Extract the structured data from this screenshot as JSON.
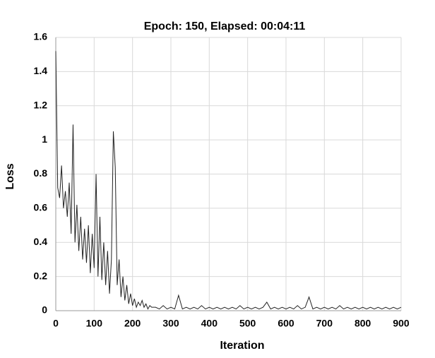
{
  "chart_data": {
    "type": "line",
    "title": "Epoch: 150, Elapsed: 00:04:11",
    "x_label": "Iteration",
    "y_label": "Loss",
    "color": "#222222",
    "grid": true,
    "xlim": [
      0,
      900
    ],
    "xticks": [
      0,
      100,
      200,
      300,
      400,
      500,
      600,
      700,
      800,
      900
    ],
    "ylim": [
      0,
      1.6
    ],
    "yticks": [
      0,
      0.2,
      0.4,
      0.6,
      0.8,
      1,
      1.2,
      1.4,
      1.6
    ],
    "x": [
      0,
      5,
      10,
      15,
      20,
      25,
      30,
      35,
      40,
      45,
      50,
      55,
      60,
      65,
      70,
      75,
      80,
      85,
      90,
      95,
      100,
      105,
      110,
      115,
      120,
      125,
      130,
      135,
      140,
      145,
      150,
      155,
      160,
      165,
      170,
      175,
      180,
      185,
      190,
      195,
      200,
      205,
      210,
      215,
      220,
      225,
      230,
      235,
      240,
      245,
      250,
      260,
      270,
      280,
      290,
      300,
      310,
      320,
      330,
      340,
      350,
      360,
      370,
      380,
      390,
      400,
      410,
      420,
      430,
      440,
      450,
      460,
      470,
      480,
      490,
      500,
      510,
      520,
      530,
      540,
      550,
      560,
      570,
      580,
      590,
      600,
      610,
      620,
      630,
      640,
      650,
      660,
      670,
      680,
      690,
      700,
      710,
      720,
      730,
      740,
      750,
      760,
      770,
      780,
      790,
      800,
      810,
      820,
      830,
      840,
      850,
      860,
      870,
      880,
      890,
      900
    ],
    "values": [
      1.52,
      0.72,
      0.66,
      0.85,
      0.6,
      0.7,
      0.55,
      0.75,
      0.45,
      1.09,
      0.4,
      0.62,
      0.35,
      0.55,
      0.3,
      0.48,
      0.28,
      0.5,
      0.22,
      0.45,
      0.25,
      0.8,
      0.2,
      0.55,
      0.18,
      0.4,
      0.15,
      0.35,
      0.1,
      0.3,
      1.05,
      0.84,
      0.15,
      0.3,
      0.08,
      0.2,
      0.06,
      0.15,
      0.04,
      0.1,
      0.03,
      0.07,
      0.02,
      0.05,
      0.03,
      0.06,
      0.02,
      0.04,
      0.01,
      0.03,
      0.02,
      0.02,
      0.01,
      0.03,
      0.01,
      0.02,
      0.01,
      0.09,
      0.01,
      0.02,
      0.01,
      0.02,
      0.01,
      0.03,
      0.01,
      0.02,
      0.01,
      0.02,
      0.01,
      0.02,
      0.01,
      0.02,
      0.01,
      0.03,
      0.01,
      0.02,
      0.01,
      0.02,
      0.01,
      0.02,
      0.05,
      0.01,
      0.02,
      0.01,
      0.02,
      0.01,
      0.02,
      0.01,
      0.03,
      0.01,
      0.02,
      0.08,
      0.01,
      0.02,
      0.01,
      0.02,
      0.01,
      0.02,
      0.01,
      0.03,
      0.01,
      0.02,
      0.01,
      0.02,
      0.01,
      0.02,
      0.01,
      0.02,
      0.01,
      0.02,
      0.01,
      0.02,
      0.01,
      0.02,
      0.01,
      0.02
    ]
  }
}
